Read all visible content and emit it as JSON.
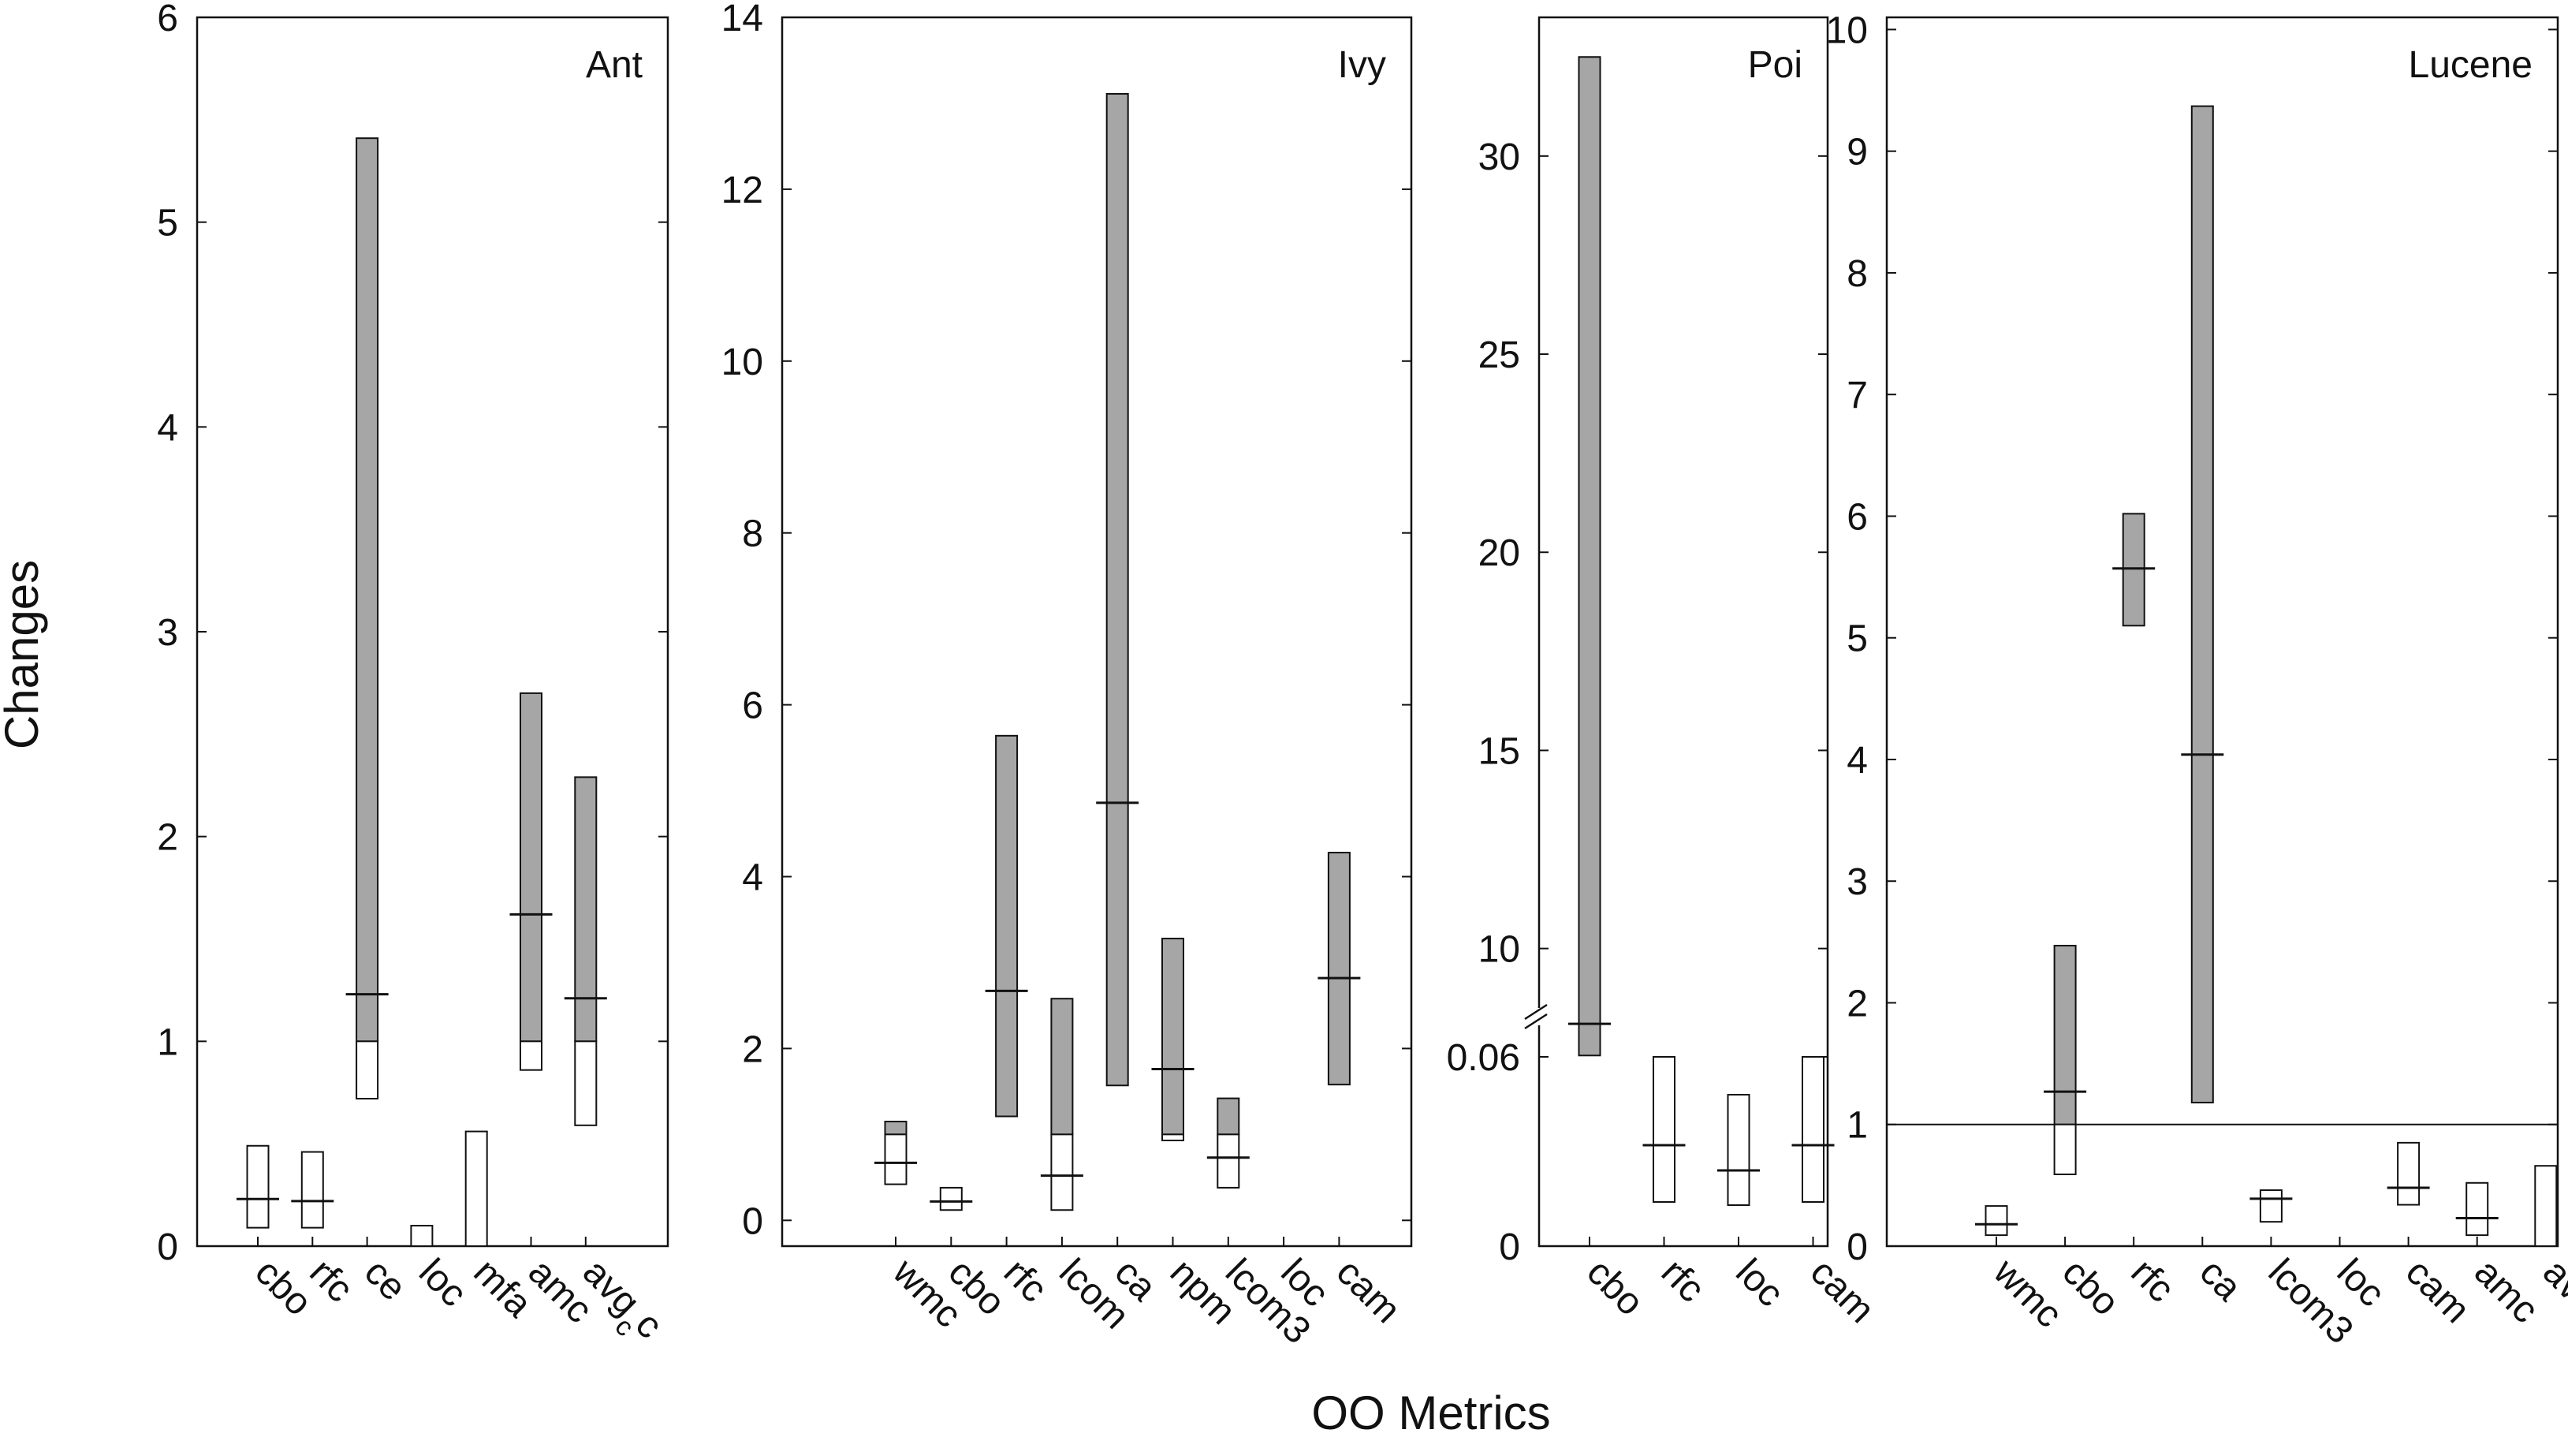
{
  "chart_data": {
    "type": "bar",
    "ylabel": "Changes",
    "xlabel": "OO Metrics",
    "colors": {
      "above_one": "#a6a6a6",
      "below_one": "#ffffff",
      "stroke": "#111111"
    },
    "panels": [
      {
        "title": "Ant",
        "ylim": [
          0,
          6
        ],
        "yticks": [
          0,
          1,
          2,
          3,
          4,
          5,
          6
        ],
        "categories": [
          "cbo",
          "rfc",
          "ce",
          "loc",
          "mfa",
          "amc",
          "avgcc"
        ],
        "category_labels": [
          {
            "base": "cbo",
            "sub": ""
          },
          {
            "base": "rfc",
            "sub": ""
          },
          {
            "base": "ce",
            "sub": ""
          },
          {
            "base": "loc",
            "sub": ""
          },
          {
            "base": "mfa",
            "sub": ""
          },
          {
            "base": "amc",
            "sub": ""
          },
          {
            "base": "avg",
            "sub": "c",
            "tail": "c"
          }
        ],
        "ranges": [
          {
            "low": 0.09,
            "high": 0.49,
            "median": 0.23
          },
          {
            "low": 0.09,
            "high": 0.46,
            "median": 0.22
          },
          {
            "low": 0.72,
            "high": 5.41,
            "median": 1.23
          },
          {
            "low": 0.0,
            "high": 0.1,
            "median": null
          },
          {
            "low": 0.0,
            "high": 0.56,
            "median": null
          },
          {
            "low": 0.86,
            "high": 2.7,
            "median": 1.62
          },
          {
            "low": 0.59,
            "high": 2.29,
            "median": 1.21
          }
        ]
      },
      {
        "title": "Ivy",
        "ylim": [
          -0.3,
          14
        ],
        "yticks": [
          0,
          2,
          4,
          6,
          8,
          10,
          12,
          14
        ],
        "categories": [
          "wmc",
          "cbo",
          "rfc",
          "lcom",
          "ca",
          "npm",
          "lcom3",
          "loc",
          "cam"
        ],
        "category_labels": [
          {
            "base": "wmc",
            "sub": ""
          },
          {
            "base": "cbo",
            "sub": ""
          },
          {
            "base": "rfc",
            "sub": ""
          },
          {
            "base": "lcom",
            "sub": ""
          },
          {
            "base": "ca",
            "sub": ""
          },
          {
            "base": "npm",
            "sub": ""
          },
          {
            "base": "lcom3",
            "sub": ""
          },
          {
            "base": "loc",
            "sub": ""
          },
          {
            "base": "cam",
            "sub": ""
          }
        ],
        "ranges": [
          {
            "low": 0.42,
            "high": 1.15,
            "median": 0.67
          },
          {
            "low": 0.12,
            "high": 0.38,
            "median": 0.22
          },
          {
            "low": 1.21,
            "high": 5.64,
            "median": 2.67
          },
          {
            "low": 0.12,
            "high": 2.58,
            "median": 0.52
          },
          {
            "low": 1.57,
            "high": 13.11,
            "median": 4.86
          },
          {
            "low": 0.93,
            "high": 3.28,
            "median": 1.76
          },
          {
            "low": 0.38,
            "high": 1.42,
            "median": 0.73
          },
          null,
          {
            "low": 1.58,
            "high": 4.28,
            "median": 2.82
          }
        ]
      },
      {
        "title": "Poi",
        "ylim_broken": {
          "lower": [
            0,
            0.07
          ],
          "upper": [
            8.5,
            33.5
          ],
          "upper_ticks": [
            10,
            15,
            20,
            25,
            30
          ],
          "lower_ticks": [
            0,
            0.06
          ]
        },
        "yticks": [
          0,
          0.06,
          10,
          15,
          20,
          25,
          30
        ],
        "categories": [
          "cbo",
          "rfc",
          "loc",
          "cam"
        ],
        "category_labels": [
          {
            "base": "cbo",
            "sub": ""
          },
          {
            "base": "rfc",
            "sub": ""
          },
          {
            "base": "loc",
            "sub": ""
          },
          {
            "base": "cam",
            "sub": ""
          }
        ],
        "ranges": [
          {
            "low": 7.3,
            "high": 32.5,
            "median": 8.1
          },
          {
            "low": 0.014,
            "high": 0.06,
            "median": 0.032
          },
          {
            "low": 0.013,
            "high": 0.048,
            "median": 0.024
          },
          {
            "low": 0.014,
            "high": 0.06,
            "median": 0.032
          }
        ]
      },
      {
        "title": "Lucene",
        "ylim": [
          0,
          10.1
        ],
        "yticks": [
          0,
          1,
          2,
          3,
          4,
          5,
          6,
          7,
          8,
          9,
          10
        ],
        "reference_line": 1,
        "categories": [
          "wmc",
          "cbo",
          "rfc",
          "ca",
          "lcom3",
          "loc",
          "cam",
          "amc",
          "avgcc"
        ],
        "category_labels": [
          {
            "base": "wmc",
            "sub": ""
          },
          {
            "base": "cbo",
            "sub": ""
          },
          {
            "base": "rfc",
            "sub": ""
          },
          {
            "base": "ca",
            "sub": ""
          },
          {
            "base": "lcom3",
            "sub": ""
          },
          {
            "base": "loc",
            "sub": ""
          },
          {
            "base": "cam",
            "sub": ""
          },
          {
            "base": "amc",
            "sub": ""
          },
          {
            "base": "avg",
            "sub": "c",
            "tail": "c"
          }
        ],
        "ranges": [
          {
            "low": 0.09,
            "high": 0.33,
            "median": 0.18
          },
          {
            "low": 0.59,
            "high": 2.47,
            "median": 1.27
          },
          {
            "low": 5.1,
            "high": 6.02,
            "median": 5.57
          },
          {
            "low": 1.18,
            "high": 9.37,
            "median": 4.04
          },
          {
            "low": 0.2,
            "high": 0.46,
            "median": 0.39
          },
          null,
          {
            "low": 0.34,
            "high": 0.85,
            "median": 0.48
          },
          {
            "low": 0.09,
            "high": 0.52,
            "median": 0.23
          },
          {
            "low": 0.0,
            "high": 0.66,
            "median": null
          }
        ]
      }
    ]
  }
}
